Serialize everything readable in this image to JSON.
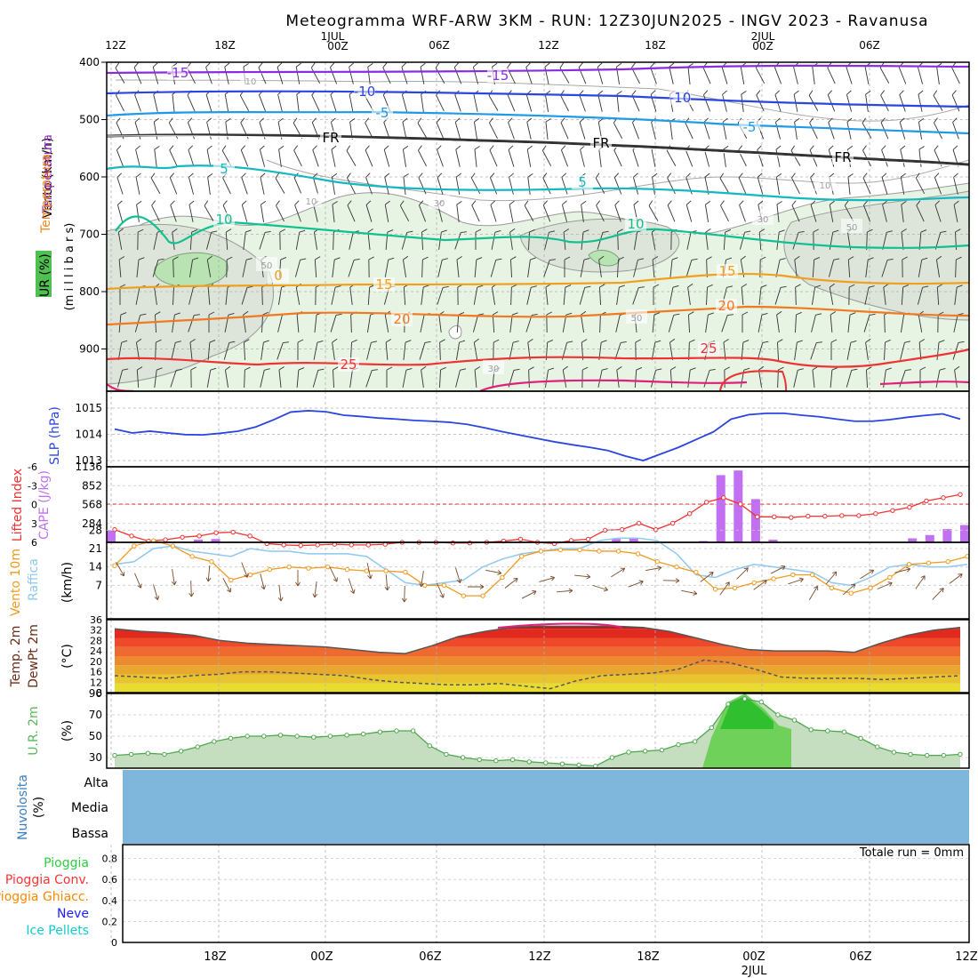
{
  "title": "Meteogramma WRF-ARW 3KM - RUN: 12Z30JUN2025 - INGV 2023 - Ravanusa",
  "top_time_labels": [
    "12Z",
    "18Z",
    "1JUL",
    "00Z",
    "06Z",
    "12Z",
    "18Z",
    "2JUL",
    "00Z",
    "06Z"
  ],
  "bottom_time_labels": [
    "18Z",
    "00Z",
    "06Z",
    "12Z",
    "18Z",
    "00Z",
    "2JUL",
    "06Z",
    "12Z"
  ],
  "colors": {
    "axis": "#000000",
    "grid": "#9a9a9a",
    "rh_fill": "#e6f4e2",
    "slp": "#2a45e0",
    "li": "#ee3333",
    "cape": "#c070f0",
    "wind": "#f09a20",
    "gust": "#8fc8f0",
    "rh2m": "#59b85a",
    "cloud": "#7fb6dc"
  },
  "panel_upper": {
    "ylabels": {
      "wind": "Vento (km/h)",
      "temp_word1": "Temperatura",
      "temp_word2": "Temperatura",
      "rh": "UR (%)",
      "mb": "(m i l l i b a r s)"
    },
    "pressure_ticks": [
      "400",
      "500",
      "600",
      "700",
      "800",
      "900"
    ],
    "iso_labels": [
      "-15",
      "-15",
      "-10",
      "-10",
      "-5",
      "-5",
      "FR",
      "FR",
      "FR",
      "5",
      "5",
      "10",
      "10",
      "15",
      "15",
      "20",
      "20",
      "25",
      "25",
      "10",
      "10",
      "10",
      "30",
      "30",
      "50",
      "50",
      "50",
      "0",
      "30"
    ]
  },
  "panel_slp": {
    "label": "SLP (hPa)",
    "ticks": [
      "1015",
      "1014",
      "1013"
    ]
  },
  "panel_cape": {
    "label_li": "Lifted Index",
    "label_cape": "CAPE (J/kg)",
    "li_ticks": [
      "-6",
      "-3",
      "0",
      "3",
      "6"
    ],
    "cape_ticks": [
      "1136",
      "852",
      "568",
      "284"
    ]
  },
  "panel_wind": {
    "label_wind": "Vento 10m",
    "label_gust": "Raffica",
    "unit": "(km/h)",
    "ticks": [
      "28",
      "21",
      "14",
      "7"
    ]
  },
  "panel_temp": {
    "label_t": "Temp. 2m",
    "label_d": "DewPt 2m",
    "unit": "(°C)",
    "ticks": [
      "36",
      "32",
      "28",
      "24",
      "20",
      "16",
      "12",
      "8"
    ]
  },
  "panel_rh": {
    "label": "U.R. 2m",
    "unit": "(%)",
    "ticks": [
      "90",
      "70",
      "50",
      "30"
    ]
  },
  "panel_cloud": {
    "label": "Nuvolosita",
    "unit": "(%)",
    "levels": [
      "Alta",
      "Media",
      "Bassa"
    ]
  },
  "panel_rain": {
    "legend": [
      "Pioggia",
      "Pioggia Conv.",
      "Pioggia Ghiacc.",
      "Neve",
      "Ice Pellets"
    ],
    "legend_colors": [
      "#2ecc40",
      "#ff3333",
      "#ff8800",
      "#2222ff",
      "#11cccc"
    ],
    "ticks": [
      "0.8",
      "0.6",
      "0.4",
      "0.2",
      "0"
    ],
    "total": "Totale run = 0mm"
  },
  "chart_data": [
    {
      "type": "line",
      "title": "Meteogramma WRF-ARW 3KM - RUN: 12Z30JUN2025 - INGV 2023 - Ravanusa",
      "ylabel": "SLP (hPa)",
      "ylim": [
        1012.95,
        1015.3
      ],
      "x": [
        0,
        1,
        2,
        3,
        4,
        5,
        6,
        7,
        8,
        9,
        10,
        11,
        12,
        13,
        14,
        15,
        16,
        17,
        18,
        19,
        20,
        21,
        22,
        23,
        24,
        25,
        26,
        27,
        28,
        29,
        30,
        31,
        32,
        33,
        34,
        35,
        36,
        37,
        38,
        39,
        40,
        41,
        42,
        43,
        44,
        45,
        46,
        47,
        48
      ],
      "series": [
        {
          "name": "SLP",
          "values": [
            1014.2,
            1014.05,
            1014.12,
            1014.05,
            1013.99,
            1013.98,
            1014.04,
            1014.12,
            1014.28,
            1014.55,
            1014.85,
            1014.9,
            1014.86,
            1014.73,
            1014.68,
            1014.62,
            1014.58,
            1014.53,
            1014.5,
            1014.46,
            1014.38,
            1014.25,
            1014.1,
            1013.97,
            1013.84,
            1013.71,
            1013.6,
            1013.5,
            1013.38,
            1013.17,
            1013.0,
            1013.25,
            1013.5,
            1013.8,
            1014.1,
            1014.58,
            1014.75,
            1014.8,
            1014.8,
            1014.73,
            1014.67,
            1014.58,
            1014.5,
            1014.5,
            1014.56,
            1014.65,
            1014.72,
            1014.78,
            1014.58
          ]
        }
      ]
    },
    {
      "type": "bar",
      "ylabel": "CAPE (J/kg)",
      "ylim": [
        0,
        1136
      ],
      "series": [
        {
          "name": "CAPE",
          "values": [
            180,
            0,
            0,
            0,
            0,
            40,
            50,
            10,
            0,
            0,
            0,
            0,
            0,
            0,
            0,
            0,
            0,
            0,
            0,
            0,
            0,
            0,
            0,
            0,
            0,
            0,
            0,
            0,
            0,
            50,
            55,
            0,
            0,
            0,
            20,
            1010,
            1080,
            650,
            40,
            0,
            0,
            0,
            0,
            0,
            0,
            0,
            60,
            110,
            200,
            260
          ]
        },
        {
          "name": "Lifted Index",
          "values": [
            4,
            5,
            5.8,
            5.6,
            5.2,
            5,
            4.5,
            4.4,
            5,
            6.2,
            6.4,
            6.5,
            6.4,
            6.3,
            6.4,
            6.4,
            6.3,
            6,
            6,
            6,
            6.1,
            6.1,
            6,
            5.8,
            5.5,
            6,
            6.2,
            5.7,
            5.5,
            4.1,
            4,
            3,
            4,
            3,
            1.5,
            -0.3,
            -1,
            0,
            2,
            2,
            2.1,
            1.9,
            1.9,
            1.8,
            1.8,
            1.5,
            1,
            0.5,
            -0.5,
            -1,
            -1.5
          ]
        }
      ]
    },
    {
      "type": "line",
      "ylabel": "(km/h)",
      "ylim": [
        0,
        28
      ],
      "series": [
        {
          "name": "Vento 10m",
          "values": [
            14.5,
            22,
            24,
            22,
            18,
            16,
            9,
            11,
            13,
            14,
            13.5,
            14,
            13,
            12.5,
            12.5,
            12,
            7,
            7,
            3,
            3,
            10,
            18,
            20,
            20.5,
            20.5,
            20,
            20,
            19,
            16,
            14,
            12,
            5.5,
            6,
            8,
            9.5,
            11,
            11,
            6,
            4,
            6,
            10,
            15,
            15.5,
            16,
            18
          ]
        },
        {
          "name": "Raffica",
          "values": [
            15,
            16,
            21,
            22,
            20,
            19,
            18,
            21,
            20,
            20,
            19,
            19,
            19,
            18,
            13,
            8,
            7,
            8,
            9,
            14,
            17,
            19,
            20,
            21,
            21,
            24,
            25,
            25,
            24,
            19,
            11,
            10,
            13,
            15,
            14,
            13,
            12,
            8,
            7,
            10,
            14,
            15,
            14,
            14,
            15
          ]
        }
      ]
    },
    {
      "type": "area",
      "ylabel": "(°C)",
      "ylim": [
        8,
        36
      ],
      "series": [
        {
          "name": "Temp. 2m",
          "values": [
            32.5,
            31.5,
            31,
            30,
            28,
            27,
            26.5,
            26,
            25.5,
            24.5,
            23.5,
            23,
            26,
            29.5,
            31.5,
            33,
            33.5,
            33.5,
            33.5,
            33.5,
            33,
            31.5,
            29,
            26.5,
            24.5,
            24,
            24,
            24,
            23.5,
            27,
            30,
            32,
            33
          ]
        },
        {
          "name": "DewPt 2m",
          "values": [
            14.5,
            14,
            13.5,
            14.5,
            15,
            16,
            16,
            15.5,
            15,
            14.5,
            13,
            12,
            11.5,
            11,
            11,
            11.5,
            10.5,
            9.5,
            12.5,
            14.5,
            15,
            15.5,
            17,
            20.5,
            19.5,
            17,
            14,
            13.5,
            13.5,
            13.5,
            13,
            13.5,
            14,
            14.5
          ]
        }
      ]
    },
    {
      "type": "area",
      "ylabel": "(%)",
      "ylim": [
        20,
        90
      ],
      "series": [
        {
          "name": "U.R. 2m",
          "values": [
            32,
            33,
            34,
            33,
            36,
            40,
            45,
            48,
            50,
            50,
            51,
            50,
            49,
            50,
            51,
            52,
            54,
            55,
            55,
            41,
            33,
            30,
            28,
            27,
            28,
            26,
            25,
            24,
            23,
            22,
            30,
            35,
            36,
            37,
            42,
            45,
            58,
            80,
            85,
            82,
            70,
            65,
            56,
            55,
            54,
            48,
            40,
            35,
            33,
            32,
            32,
            33
          ]
        }
      ]
    },
    {
      "type": "bar",
      "ylabel": "",
      "ylim": [
        0,
        1
      ],
      "series": [
        {
          "name": "Pioggia",
          "values": [
            0,
            0,
            0,
            0,
            0,
            0,
            0,
            0,
            0,
            0,
            0,
            0,
            0,
            0,
            0,
            0,
            0,
            0,
            0,
            0,
            0,
            0,
            0,
            0,
            0,
            0,
            0,
            0,
            0,
            0,
            0,
            0,
            0,
            0,
            0,
            0,
            0,
            0,
            0,
            0,
            0,
            0,
            0,
            0,
            0,
            0,
            0,
            0
          ]
        }
      ]
    }
  ]
}
